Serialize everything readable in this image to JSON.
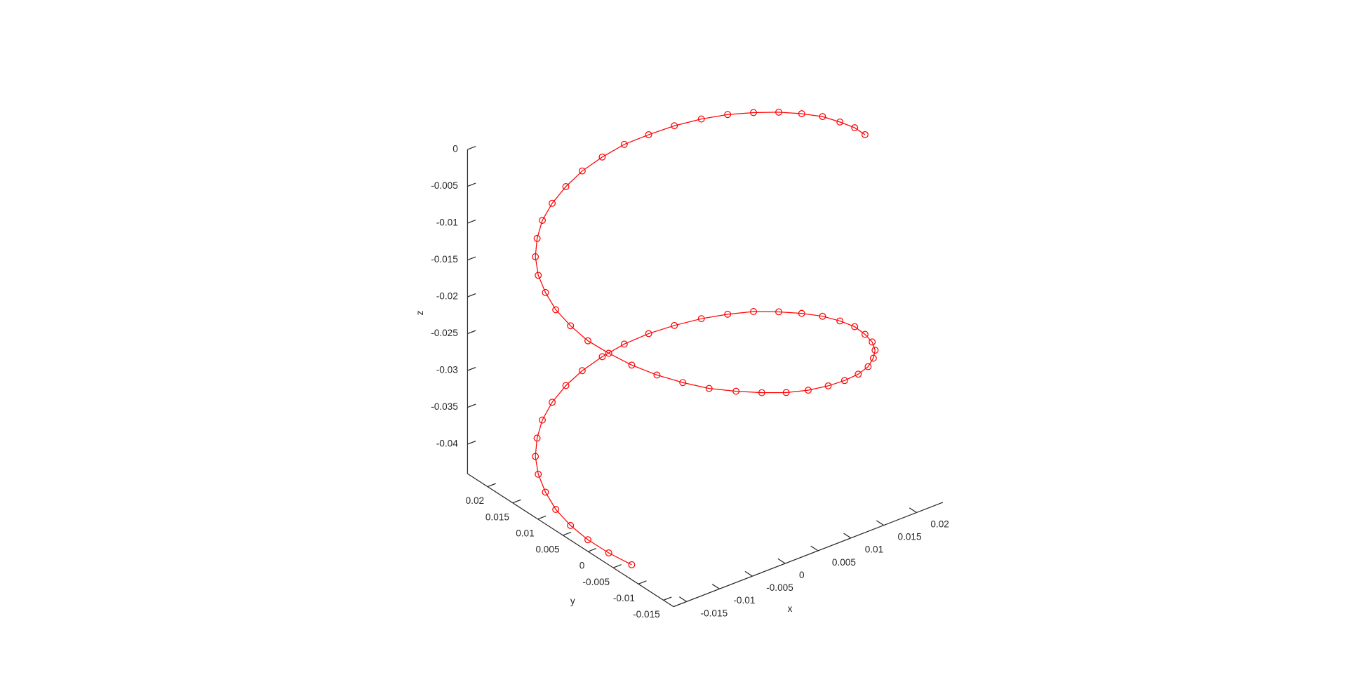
{
  "chart_data": {
    "type": "line3d",
    "marker": "o",
    "xlabel": "x",
    "ylabel": "y",
    "zlabel": "z",
    "xlim": [
      -0.017,
      0.024
    ],
    "ylim": [
      -0.017,
      0.024
    ],
    "zlim": [
      -0.044,
      0
    ],
    "xticks": [
      -0.015,
      -0.01,
      -0.005,
      0,
      0.005,
      0.01,
      0.015,
      0.02
    ],
    "yticks": [
      -0.015,
      -0.01,
      -0.005,
      0,
      0.005,
      0.01,
      0.015,
      0.02
    ],
    "zticks": [
      0,
      -0.005,
      -0.01,
      -0.015,
      -0.02,
      -0.025,
      -0.03,
      -0.035,
      -0.04
    ],
    "series": [
      {
        "color": "#ff0000",
        "x": [
          0.023,
          0.0238,
          0.024,
          0.0238,
          0.023,
          0.0218,
          0.0201,
          0.018,
          0.0156,
          0.0128,
          0.0098,
          0.0067,
          0.0035,
          0.0003,
          -0.0028,
          -0.0058,
          -0.0086,
          -0.011,
          -0.0131,
          -0.0148,
          -0.016,
          -0.0168,
          -0.017,
          -0.0168,
          -0.016,
          -0.0148,
          -0.0131,
          -0.011,
          -0.0086,
          -0.0058,
          -0.0028,
          0.0003,
          0.0035,
          0.0067,
          0.0098,
          0.0128,
          0.0156,
          0.018,
          0.0201,
          0.0218,
          0.023,
          0.0238,
          0.024,
          0.0238,
          0.023,
          0.0218,
          0.0201,
          0.018,
          0.0156,
          0.0128,
          0.0098,
          0.0067,
          0.0035,
          0.0003,
          -0.0028,
          -0.0058,
          -0.0086,
          -0.011,
          -0.0131,
          -0.0148,
          -0.016,
          -0.0168,
          -0.017,
          -0.0168,
          -0.016,
          -0.0148
        ],
        "y": [
          -0.0028,
          0.0003,
          0.0035,
          0.0067,
          0.0098,
          0.0128,
          0.0156,
          0.018,
          0.0201,
          0.0218,
          0.023,
          0.0238,
          0.024,
          0.0238,
          0.023,
          0.0218,
          0.0201,
          0.018,
          0.0156,
          0.0128,
          0.0098,
          0.0067,
          0.0035,
          0.0003,
          -0.0028,
          -0.0058,
          -0.0086,
          -0.011,
          -0.0131,
          -0.0148,
          -0.016,
          -0.0168,
          -0.017,
          -0.0168,
          -0.016,
          -0.0148,
          -0.0131,
          -0.011,
          -0.0086,
          -0.0058,
          -0.0028,
          0.0003,
          0.0035,
          0.0067,
          0.0098,
          0.0128,
          0.0156,
          0.018,
          0.0201,
          0.0218,
          0.023,
          0.0238,
          0.024,
          0.0238,
          0.023,
          0.0218,
          0.0201,
          0.018,
          0.0156,
          0.0128,
          0.0098,
          0.0067,
          0.0035,
          0.0003,
          -0.0028,
          -0.0058
        ],
        "z": [
          0,
          -0.0007,
          -0.0014,
          -0.002,
          -0.0027,
          -0.0034,
          -0.0041,
          -0.0047,
          -0.0054,
          -0.0061,
          -0.0068,
          -0.0074,
          -0.0081,
          -0.0088,
          -0.0095,
          -0.0102,
          -0.0108,
          -0.0115,
          -0.0122,
          -0.0129,
          -0.0135,
          -0.0142,
          -0.0149,
          -0.0156,
          -0.0162,
          -0.0169,
          -0.0176,
          -0.0183,
          -0.019,
          -0.0196,
          -0.0203,
          -0.021,
          -0.0217,
          -0.0223,
          -0.023,
          -0.0237,
          -0.0244,
          -0.025,
          -0.0257,
          -0.0264,
          -0.0271,
          -0.0277,
          -0.0284,
          -0.0291,
          -0.0298,
          -0.0305,
          -0.0311,
          -0.0318,
          -0.0325,
          -0.0332,
          -0.0338,
          -0.0345,
          -0.0352,
          -0.0359,
          -0.0365,
          -0.0372,
          -0.0379,
          -0.0386,
          -0.0393,
          -0.0399,
          -0.0406,
          -0.0413,
          -0.042,
          -0.0426,
          -0.0433,
          -0.044
        ]
      }
    ]
  }
}
